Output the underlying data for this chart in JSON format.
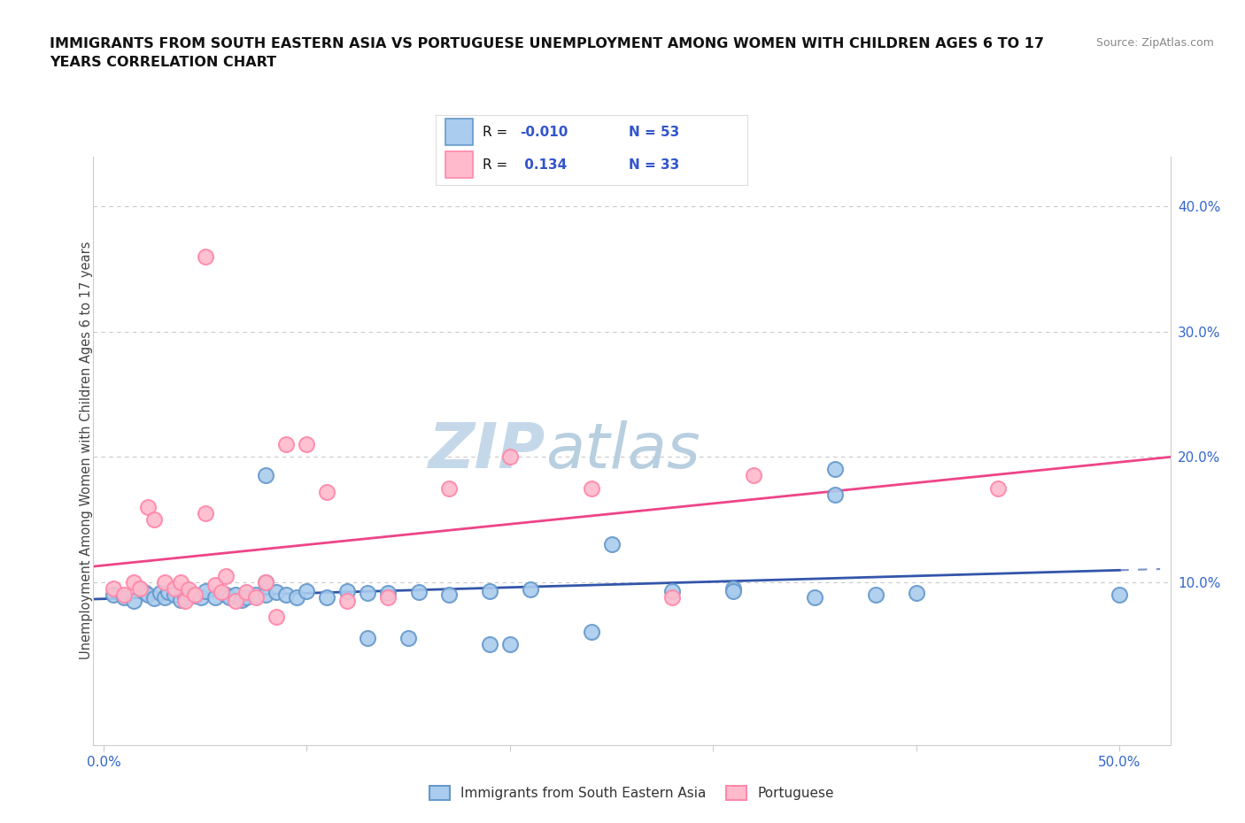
{
  "title_line1": "IMMIGRANTS FROM SOUTH EASTERN ASIA VS PORTUGUESE UNEMPLOYMENT AMONG WOMEN WITH CHILDREN AGES 6 TO 17",
  "title_line2": "YEARS CORRELATION CHART",
  "source_text": "Source: ZipAtlas.com",
  "ylabel": "Unemployment Among Women with Children Ages 6 to 17 years",
  "background_color": "#ffffff",
  "grid_color": "#bbbbbb",
  "watermark_text1": "ZIP",
  "watermark_text2": "atlas",
  "watermark_color1": "#c8d8e8",
  "watermark_color2": "#b0c8e0",
  "xlim": [
    -0.005,
    0.525
  ],
  "ylim": [
    -0.03,
    0.44
  ],
  "color_blue_face": "#aaccee",
  "color_blue_edge": "#6699cc",
  "color_pink_face": "#ffbbcc",
  "color_pink_edge": "#ff88aa",
  "trendline_blue_color": "#3355aa",
  "trendline_pink_color": "#ee4488",
  "x_tick_vals": [
    0.0,
    0.1,
    0.2,
    0.3,
    0.4,
    0.5
  ],
  "x_tick_labels": [
    "0.0%",
    "",
    "",
    "",
    "",
    "50.0%"
  ],
  "y_tick_vals": [
    0.1,
    0.2,
    0.3,
    0.4
  ],
  "y_tick_labels": [
    "10.0%",
    "20.0%",
    "30.0%",
    "40.0%"
  ],
  "legend_box_color": "#eeeeee",
  "blue_x": [
    0.005,
    0.01,
    0.015,
    0.02,
    0.022,
    0.025,
    0.028,
    0.03,
    0.032,
    0.035,
    0.038,
    0.04,
    0.042,
    0.045,
    0.048,
    0.05,
    0.055,
    0.06,
    0.062,
    0.065,
    0.068,
    0.07,
    0.075,
    0.08,
    0.085,
    0.09,
    0.095,
    0.1,
    0.11,
    0.12,
    0.13,
    0.14,
    0.155,
    0.17,
    0.19,
    0.21,
    0.25,
    0.28,
    0.31,
    0.35,
    0.36,
    0.38,
    0.4,
    0.36,
    0.31,
    0.08,
    0.13,
    0.2,
    0.19,
    0.15,
    0.5,
    0.24,
    0.08
  ],
  "blue_y": [
    0.09,
    0.088,
    0.085,
    0.092,
    0.09,
    0.087,
    0.091,
    0.088,
    0.092,
    0.09,
    0.086,
    0.088,
    0.091,
    0.089,
    0.088,
    0.093,
    0.088,
    0.09,
    0.088,
    0.09,
    0.086,
    0.088,
    0.09,
    0.09,
    0.092,
    0.09,
    0.088,
    0.093,
    0.088,
    0.093,
    0.091,
    0.091,
    0.092,
    0.09,
    0.093,
    0.094,
    0.13,
    0.093,
    0.095,
    0.088,
    0.19,
    0.09,
    0.091,
    0.17,
    0.093,
    0.185,
    0.055,
    0.05,
    0.05,
    0.055,
    0.09,
    0.06,
    0.1
  ],
  "pink_x": [
    0.005,
    0.01,
    0.015,
    0.018,
    0.022,
    0.025,
    0.03,
    0.035,
    0.038,
    0.04,
    0.042,
    0.045,
    0.05,
    0.055,
    0.058,
    0.06,
    0.065,
    0.07,
    0.075,
    0.08,
    0.085,
    0.09,
    0.1,
    0.11,
    0.12,
    0.14,
    0.17,
    0.2,
    0.24,
    0.28,
    0.32,
    0.44,
    0.05
  ],
  "pink_y": [
    0.095,
    0.09,
    0.1,
    0.095,
    0.16,
    0.15,
    0.1,
    0.095,
    0.1,
    0.085,
    0.094,
    0.09,
    0.155,
    0.098,
    0.092,
    0.105,
    0.085,
    0.092,
    0.088,
    0.1,
    0.072,
    0.21,
    0.21,
    0.172,
    0.085,
    0.088,
    0.175,
    0.2,
    0.175,
    0.088,
    0.185,
    0.175,
    0.36
  ]
}
